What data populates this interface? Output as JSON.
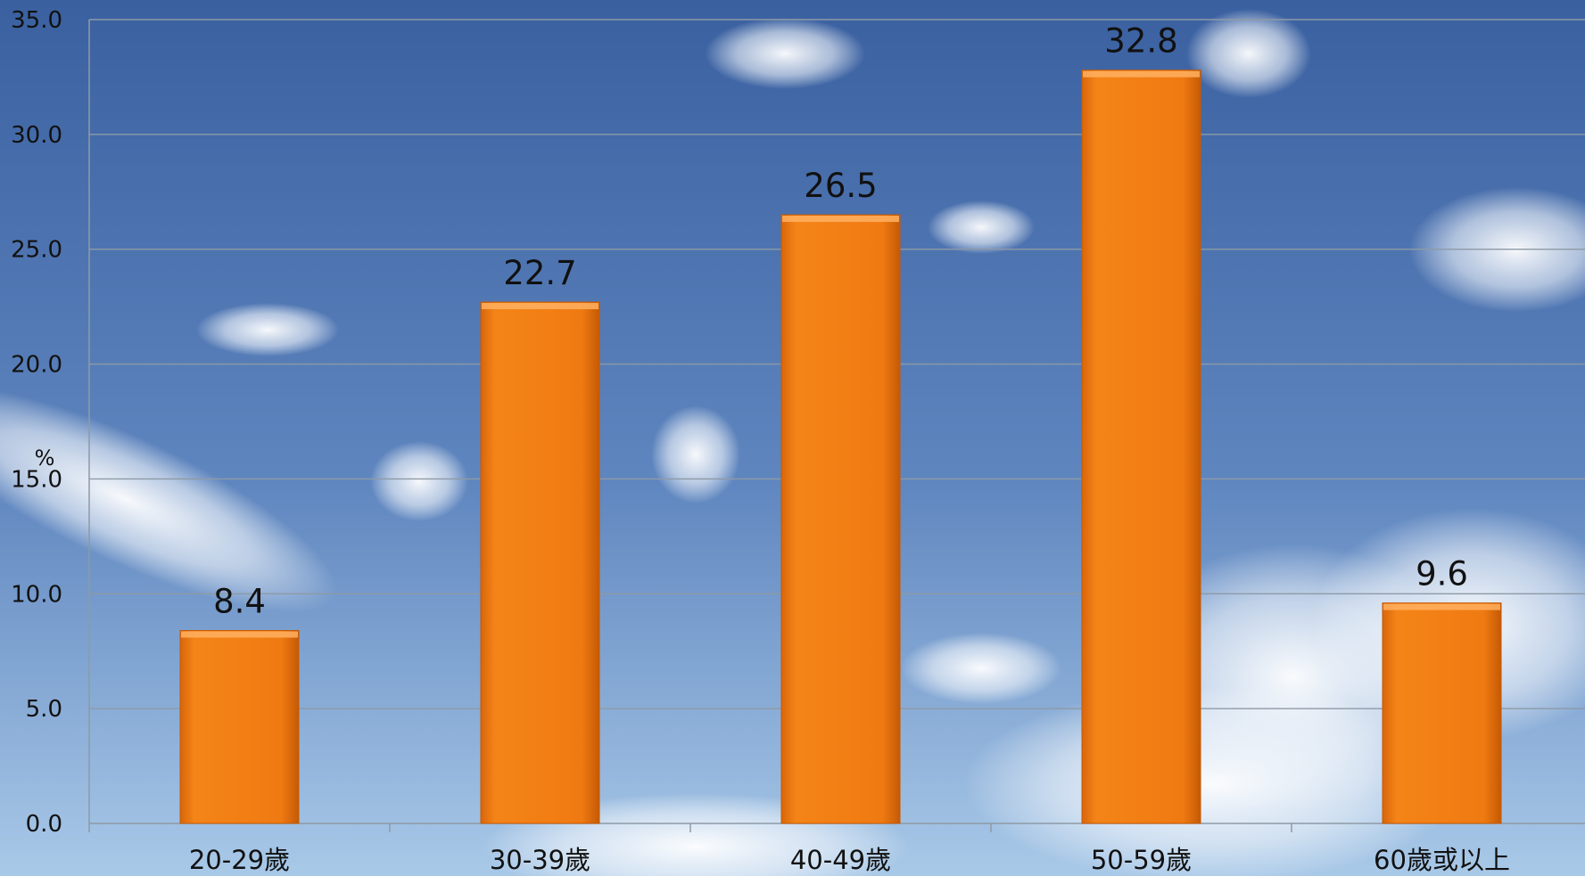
{
  "colors": {
    "bar": "#f07a12",
    "bar_dark": "#c55a05",
    "bar_light": "#ffb060",
    "grid": "#8e9aa6",
    "sky_top": "#3b62a0",
    "sky_bottom": "#9cc0e2"
  },
  "chart_data": {
    "type": "bar",
    "categories": [
      "20-29歲",
      "30-39歲",
      "40-49歲",
      "50-59歲",
      "60歲或以上"
    ],
    "values": [
      8.4,
      22.7,
      26.5,
      32.8,
      9.6
    ],
    "value_labels": [
      "8.4",
      "22.7",
      "26.5",
      "32.8",
      "9.6"
    ],
    "ylabel": "%",
    "ylim": [
      0,
      35
    ],
    "yticks": [
      "0.0",
      "5.0",
      "10.0",
      "15.0",
      "20.0",
      "25.0",
      "30.0",
      "35.0"
    ],
    "grid": true,
    "legend": "none"
  }
}
